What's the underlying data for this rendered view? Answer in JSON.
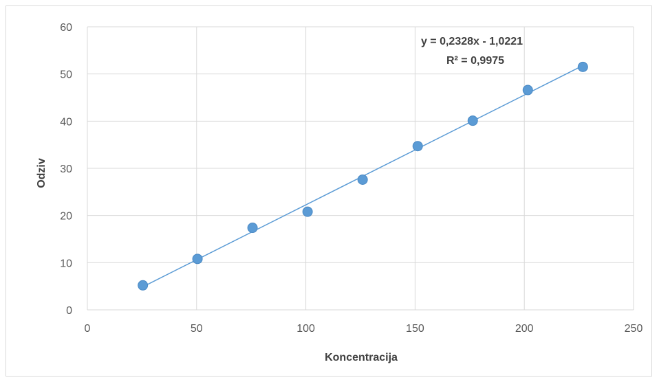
{
  "chart_data": {
    "type": "scatter",
    "xlabel": "Koncentracija",
    "ylabel": "Odziv",
    "xlim": [
      0,
      250
    ],
    "ylim": [
      0,
      60
    ],
    "x_ticks": [
      0,
      50,
      100,
      150,
      200,
      250
    ],
    "y_ticks": [
      0,
      10,
      20,
      30,
      40,
      50,
      60
    ],
    "x_tick_labels": [
      "0",
      "50",
      "100",
      "150",
      "200",
      "250"
    ],
    "y_tick_labels": [
      "0",
      "10",
      "20",
      "30",
      "40",
      "50",
      "60"
    ],
    "grid": true,
    "legend": "none",
    "series": [
      {
        "x": [
          25.4,
          50.4,
          75.6,
          100.8,
          126,
          151.2,
          176.4,
          201.6,
          226.8
        ],
        "y": [
          5.2,
          10.8,
          17.4,
          20.8,
          27.6,
          34.7,
          40.1,
          46.6,
          51.5
        ],
        "color": "#5b9bd5"
      }
    ],
    "trendline": {
      "type": "linear",
      "slope": 0.2328,
      "intercept": -1.0221,
      "x_range": [
        25.4,
        226.8
      ],
      "color": "#5b9bd5",
      "equation_label": "y = 0,2328x - 1,0221",
      "r2_label": "R² = 0,9975"
    }
  }
}
